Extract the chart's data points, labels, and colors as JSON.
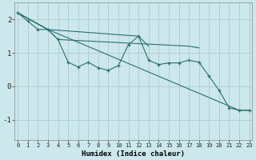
{
  "xlabel": "Humidex (Indice chaleur)",
  "bg_color": "#cce8ec",
  "grid_color": "#aacccc",
  "line_color": "#2a7070",
  "xlim": [
    -0.3,
    23.3
  ],
  "ylim": [
    -1.6,
    2.5
  ],
  "yticks": [
    -1,
    0,
    1,
    2
  ],
  "xticks": [
    0,
    1,
    2,
    3,
    4,
    5,
    6,
    7,
    8,
    9,
    10,
    11,
    12,
    13,
    14,
    15,
    16,
    17,
    18,
    19,
    20,
    21,
    22,
    23
  ],
  "series": [
    {
      "x": [
        0,
        1,
        2,
        3,
        4,
        5,
        6,
        7,
        8,
        9,
        10,
        11,
        12,
        13,
        14,
        15,
        16,
        17,
        18,
        19,
        20,
        21,
        22,
        23
      ],
      "y": [
        2.2,
        1.95,
        1.7,
        1.7,
        1.4,
        0.72,
        0.58,
        0.72,
        0.55,
        0.48,
        0.62,
        1.25,
        1.5,
        0.78,
        0.65,
        0.7,
        0.7,
        0.78,
        0.72,
        0.3,
        -0.12,
        -0.65,
        -0.72,
        -0.72
      ],
      "markers": true
    },
    {
      "x": [
        0,
        3,
        4,
        17,
        18
      ],
      "y": [
        2.2,
        1.7,
        1.4,
        1.2,
        1.15
      ],
      "markers": false
    },
    {
      "x": [
        0,
        3,
        12,
        13
      ],
      "y": [
        2.2,
        1.7,
        1.5,
        1.2
      ],
      "markers": false
    },
    {
      "x": [
        0,
        3,
        22,
        23
      ],
      "y": [
        2.2,
        1.7,
        -0.72,
        -0.72
      ],
      "markers": false
    }
  ]
}
